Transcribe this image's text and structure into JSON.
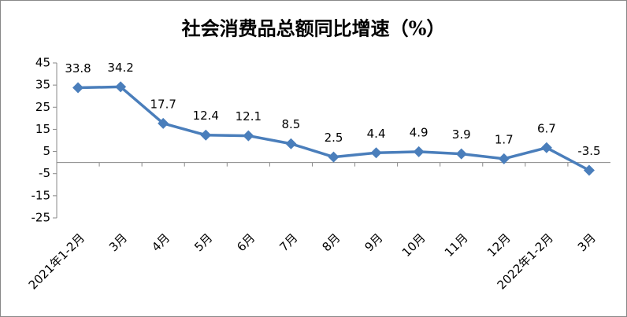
{
  "chart_data": {
    "type": "line",
    "title": "社会消费品总额同比增速（%）",
    "categories": [
      "2021年1-2月",
      "3月",
      "4月",
      "5月",
      "6月",
      "7月",
      "8月",
      "9月",
      "10月",
      "11月",
      "12月",
      "2022年1-2月",
      "3月"
    ],
    "values": [
      33.8,
      34.2,
      17.7,
      12.4,
      12.1,
      8.5,
      2.5,
      4.4,
      4.9,
      3.9,
      1.7,
      6.7,
      -3.5
    ],
    "color": "#4a7ebb",
    "ylim": [
      -25,
      45
    ],
    "yticks": [
      -25,
      -15,
      -5,
      5,
      15,
      25,
      35,
      45
    ],
    "grid": false
  }
}
